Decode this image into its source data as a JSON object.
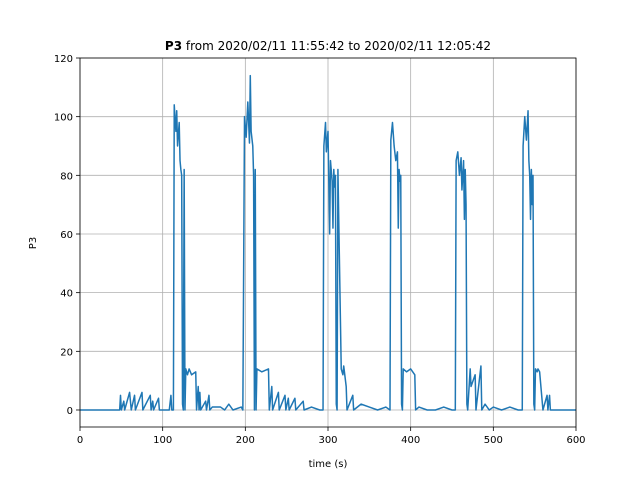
{
  "chart_data": {
    "type": "line",
    "title": [
      "P3",
      "from 2020/02/11 11:55:42 to 2020/02/11 12:05:42"
    ],
    "xlabel": "time (s)",
    "ylabel": "P3",
    "xlim": [
      0,
      600
    ],
    "ylim": [
      -5.8,
      120
    ],
    "xticks": [
      0,
      100,
      200,
      300,
      400,
      500,
      600
    ],
    "yticks": [
      0,
      20,
      40,
      60,
      80,
      100,
      120
    ],
    "grid": true,
    "series": [
      {
        "color": "#1f77b4",
        "x": [
          0,
          48,
          49,
          50,
          53,
          54,
          60,
          62,
          66,
          67,
          75,
          76,
          85,
          86,
          88,
          89,
          95,
          96,
          108,
          110,
          111,
          113,
          114,
          116,
          117,
          118,
          120,
          121,
          122,
          123,
          124,
          125,
          126,
          127,
          128,
          130,
          132,
          135,
          140,
          141,
          143,
          144,
          145,
          146,
          152,
          153,
          156,
          157,
          160,
          170,
          175,
          180,
          185,
          195,
          197,
          199,
          201,
          203,
          205,
          206,
          207,
          209,
          210,
          211,
          212,
          213,
          214,
          220,
          228,
          229,
          232,
          233,
          240,
          241,
          248,
          249,
          252,
          253,
          260,
          261,
          270,
          271,
          280,
          290,
          294,
          295,
          297,
          298,
          300,
          302,
          303,
          305,
          306,
          307,
          308,
          309,
          310,
          311,
          312,
          316,
          318,
          319,
          322,
          323,
          330,
          331,
          340,
          350,
          360,
          370,
          375,
          376,
          378,
          380,
          382,
          384,
          385,
          386,
          387,
          388,
          389,
          390,
          391,
          395,
          400,
          405,
          406,
          410,
          420,
          430,
          440,
          450,
          454,
          455,
          457,
          459,
          461,
          462,
          464,
          465,
          466,
          467,
          468,
          469,
          472,
          473,
          478,
          479,
          485,
          486,
          490,
          495,
          500,
          510,
          520,
          530,
          535,
          536,
          538,
          540,
          542,
          543,
          544,
          545,
          546,
          547,
          548,
          549,
          550,
          551,
          553,
          554,
          556,
          560,
          565,
          566,
          568,
          569,
          575,
          600
        ],
        "values": [
          0,
          0,
          5,
          0,
          3,
          0,
          6,
          0,
          5,
          0,
          6,
          0,
          5,
          0,
          3,
          0,
          4,
          0,
          0,
          5,
          0,
          0,
          104,
          95,
          102,
          90,
          98,
          85,
          82,
          80,
          2,
          0,
          82,
          0,
          14,
          12,
          14,
          12,
          13,
          0,
          8,
          0,
          6,
          0,
          3,
          0,
          5,
          0,
          1,
          1,
          0,
          2,
          0,
          1,
          0,
          100,
          93,
          105,
          91,
          114,
          95,
          90,
          80,
          0,
          82,
          0,
          14,
          13,
          14,
          0,
          8,
          0,
          6,
          0,
          5,
          0,
          4,
          0,
          4,
          0,
          3,
          0,
          1,
          0,
          0,
          90,
          98,
          88,
          95,
          60,
          85,
          78,
          62,
          82,
          76,
          80,
          2,
          0,
          82,
          14,
          12,
          15,
          8,
          0,
          5,
          0,
          2,
          1,
          0,
          1,
          0,
          92,
          98,
          90,
          85,
          88,
          62,
          82,
          78,
          80,
          2,
          0,
          14,
          13,
          14,
          12,
          0,
          1,
          0,
          0,
          1,
          0,
          0,
          85,
          88,
          80,
          86,
          75,
          85,
          65,
          82,
          70,
          2,
          0,
          14,
          8,
          12,
          0,
          15,
          0,
          2,
          0,
          1,
          0,
          1,
          0,
          0,
          90,
          100,
          92,
          102,
          85,
          80,
          65,
          82,
          70,
          80,
          2,
          0,
          14,
          13,
          14,
          13,
          0,
          5,
          0,
          5,
          0,
          0,
          0
        ]
      }
    ]
  }
}
